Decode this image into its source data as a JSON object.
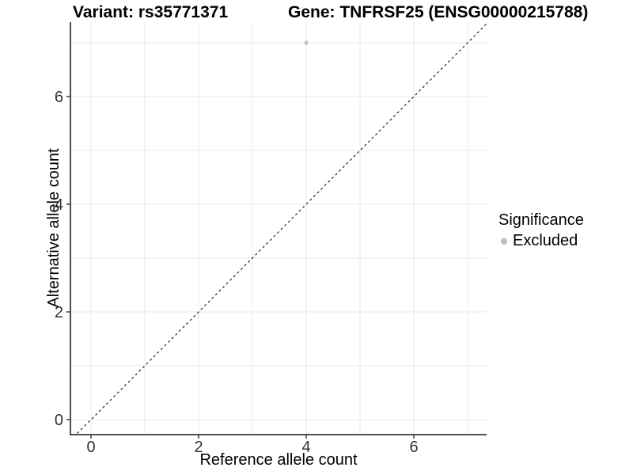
{
  "titles": {
    "variant": "Variant: rs35771371",
    "gene": "Gene: TNFRSF25 (ENSG00000215788)"
  },
  "chart_data": {
    "type": "scatter",
    "xlabel": "Reference allele count",
    "ylabel": "Alternative allele count",
    "xlim": [
      -0.4,
      7.35
    ],
    "ylim": [
      -0.28,
      7.38
    ],
    "x_ticks": [
      0,
      2,
      4,
      6
    ],
    "y_ticks": [
      0,
      2,
      4,
      6
    ],
    "grid_x": [
      0,
      1,
      2,
      3,
      4,
      5,
      6,
      7
    ],
    "grid_y": [
      0,
      1,
      2,
      3,
      4,
      5,
      6,
      7
    ],
    "points": [
      {
        "x": 4,
        "y": 7,
        "significance": "Excluded"
      }
    ],
    "reference_line": {
      "slope": 1,
      "intercept": 0,
      "style": "dashed",
      "color": "#111111"
    },
    "legend": {
      "title": "Significance",
      "position": "right",
      "entries": [
        {
          "label": "Excluded",
          "color": "#bdbdbd"
        }
      ]
    },
    "colors": {
      "point": "#c0c0c0",
      "grid": "#e9e9e9",
      "axis_line": "#3a3a3a",
      "tick_text": "#333333"
    }
  }
}
